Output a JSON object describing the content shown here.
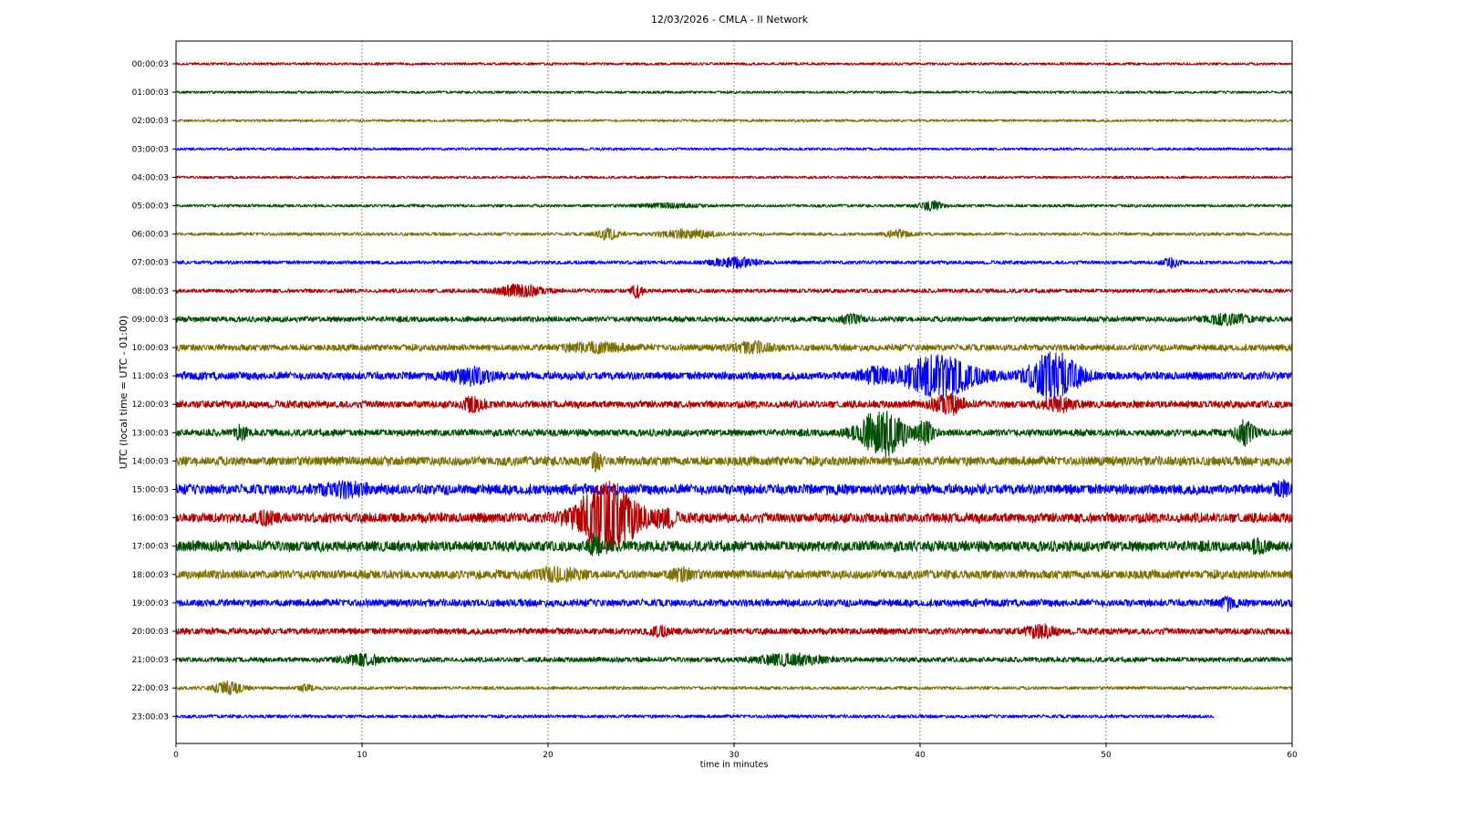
{
  "chart_data": {
    "type": "line",
    "title": "12/03/2026 - CMLA - II Network",
    "xlabel": "time in minutes",
    "ylabel": "UTC (local time = UTC - 01:00)",
    "xlim": [
      0,
      60
    ],
    "xticks": [
      0,
      10,
      20,
      30,
      40,
      50,
      60
    ],
    "grid": "vertical dashed at x ticks",
    "colors": [
      "#b00000",
      "#004f00",
      "#807000",
      "#0000ff"
    ],
    "rows": [
      {
        "label": "00:00:03",
        "noise": 0.35,
        "end": 60,
        "events": []
      },
      {
        "label": "01:00:03",
        "noise": 0.35,
        "end": 60,
        "events": []
      },
      {
        "label": "02:00:03",
        "noise": 0.35,
        "end": 60,
        "events": []
      },
      {
        "label": "03:00:03",
        "noise": 0.35,
        "end": 60,
        "events": []
      },
      {
        "label": "04:00:03",
        "noise": 0.35,
        "end": 60,
        "events": []
      },
      {
        "label": "05:00:03",
        "noise": 0.4,
        "end": 60,
        "events": [
          {
            "t": 40.6,
            "amp": 1.4,
            "dur": 0.6
          },
          {
            "t": 26.5,
            "amp": 0.6,
            "dur": 1.5
          }
        ]
      },
      {
        "label": "06:00:03",
        "noise": 0.45,
        "end": 60,
        "events": [
          {
            "t": 23.2,
            "amp": 1.6,
            "dur": 0.6
          },
          {
            "t": 27.5,
            "amp": 1.2,
            "dur": 1.5
          },
          {
            "t": 38.8,
            "amp": 1.0,
            "dur": 0.6
          }
        ]
      },
      {
        "label": "07:00:03",
        "noise": 0.5,
        "end": 60,
        "events": [
          {
            "t": 30.0,
            "amp": 1.4,
            "dur": 1.2
          },
          {
            "t": 53.5,
            "amp": 1.4,
            "dur": 0.4
          }
        ]
      },
      {
        "label": "08:00:03",
        "noise": 0.55,
        "end": 60,
        "events": [
          {
            "t": 18.5,
            "amp": 1.7,
            "dur": 1.2
          },
          {
            "t": 24.8,
            "amp": 1.9,
            "dur": 0.3
          }
        ]
      },
      {
        "label": "09:00:03",
        "noise": 0.75,
        "end": 60,
        "events": [
          {
            "t": 36.3,
            "amp": 1.3,
            "dur": 0.5
          },
          {
            "t": 56.5,
            "amp": 1.3,
            "dur": 1.2
          }
        ]
      },
      {
        "label": "10:00:03",
        "noise": 0.9,
        "end": 60,
        "events": [
          {
            "t": 22.5,
            "amp": 1.3,
            "dur": 1.5
          },
          {
            "t": 31.0,
            "amp": 1.3,
            "dur": 1.0
          }
        ]
      },
      {
        "label": "11:00:03",
        "noise": 1.1,
        "end": 60,
        "events": [
          {
            "t": 15.8,
            "amp": 2.2,
            "dur": 1.0
          },
          {
            "t": 41.0,
            "amp": 6.0,
            "dur": 2.0
          },
          {
            "t": 47.2,
            "amp": 7.0,
            "dur": 1.3
          },
          {
            "t": 37.5,
            "amp": 1.8,
            "dur": 0.8
          }
        ]
      },
      {
        "label": "12:00:03",
        "noise": 1.0,
        "end": 60,
        "events": [
          {
            "t": 16.0,
            "amp": 2.2,
            "dur": 0.5
          },
          {
            "t": 41.5,
            "amp": 2.6,
            "dur": 0.8
          },
          {
            "t": 47.5,
            "amp": 1.8,
            "dur": 0.8
          }
        ]
      },
      {
        "label": "13:00:03",
        "noise": 0.95,
        "end": 60,
        "events": [
          {
            "t": 3.5,
            "amp": 2.0,
            "dur": 0.3
          },
          {
            "t": 38.0,
            "amp": 7.0,
            "dur": 1.3
          },
          {
            "t": 40.3,
            "amp": 3.0,
            "dur": 0.4
          },
          {
            "t": 57.5,
            "amp": 3.5,
            "dur": 0.5
          }
        ]
      },
      {
        "label": "14:00:03",
        "noise": 1.25,
        "end": 60,
        "events": [
          {
            "t": 22.6,
            "amp": 2.2,
            "dur": 0.3
          }
        ]
      },
      {
        "label": "15:00:03",
        "noise": 1.4,
        "end": 60,
        "events": [
          {
            "t": 9.0,
            "amp": 1.6,
            "dur": 1.2
          },
          {
            "t": 59.5,
            "amp": 1.6,
            "dur": 0.5
          }
        ]
      },
      {
        "label": "16:00:03",
        "noise": 1.35,
        "end": 60,
        "events": [
          {
            "t": 23.2,
            "amp": 10.5,
            "dur": 1.6
          },
          {
            "t": 26.3,
            "amp": 2.4,
            "dur": 0.5
          },
          {
            "t": 4.8,
            "amp": 1.6,
            "dur": 0.5
          }
        ]
      },
      {
        "label": "17:00:03",
        "noise": 1.45,
        "end": 60,
        "events": [
          {
            "t": 58.2,
            "amp": 2.5,
            "dur": 0.3
          },
          {
            "t": 22.5,
            "amp": 3.5,
            "dur": 0.3
          }
        ]
      },
      {
        "label": "18:00:03",
        "noise": 1.2,
        "end": 60,
        "events": [
          {
            "t": 20.5,
            "amp": 1.5,
            "dur": 1.2
          },
          {
            "t": 27.2,
            "amp": 1.5,
            "dur": 0.6
          }
        ]
      },
      {
        "label": "19:00:03",
        "noise": 1.0,
        "end": 60,
        "events": [
          {
            "t": 56.5,
            "amp": 1.6,
            "dur": 0.4
          }
        ]
      },
      {
        "label": "20:00:03",
        "noise": 0.9,
        "end": 60,
        "events": [
          {
            "t": 46.5,
            "amp": 1.6,
            "dur": 0.8
          },
          {
            "t": 26.0,
            "amp": 1.3,
            "dur": 0.5
          }
        ]
      },
      {
        "label": "21:00:03",
        "noise": 0.7,
        "end": 60,
        "events": [
          {
            "t": 10.0,
            "amp": 1.4,
            "dur": 1.2
          },
          {
            "t": 33.0,
            "amp": 1.5,
            "dur": 1.8
          }
        ]
      },
      {
        "label": "22:00:03",
        "noise": 0.45,
        "end": 60,
        "events": [
          {
            "t": 2.8,
            "amp": 1.8,
            "dur": 0.8
          },
          {
            "t": 7.0,
            "amp": 1.0,
            "dur": 0.4
          }
        ]
      },
      {
        "label": "23:00:03",
        "noise": 0.45,
        "end": 55.8,
        "events": []
      }
    ]
  }
}
